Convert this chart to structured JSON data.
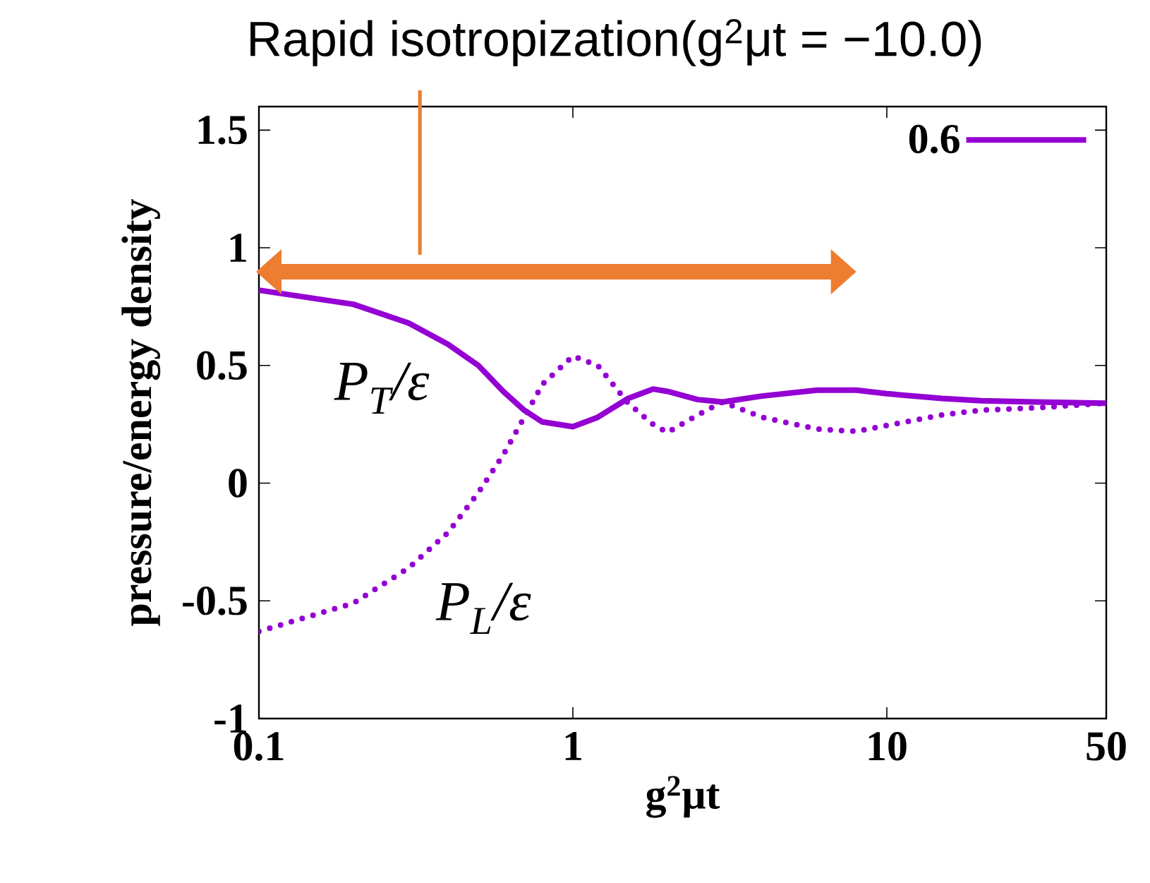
{
  "chart_data": {
    "type": "line",
    "title": "Rapid isotropization(g$^{2}$μt = −10.0)",
    "xlabel": "g$^{2}$μt",
    "ylabel": "pressure/energy density",
    "log": "x",
    "xlim": [
      0.1,
      50
    ],
    "ylim": [
      -1,
      1.6
    ],
    "xticks": [
      0.1,
      1,
      10,
      50
    ],
    "yticks": [
      -1,
      -0.5,
      0,
      0.5,
      1,
      1.5
    ],
    "grid": false,
    "legend": "top right",
    "x": [
      0.1,
      0.2,
      0.3,
      0.4,
      0.5,
      0.6,
      0.7,
      0.8,
      1,
      1.2,
      1.5,
      1.8,
      2,
      2.5,
      3,
      4,
      6,
      8,
      10,
      15,
      20,
      30,
      50
    ],
    "series": [
      {
        "name": "0.6",
        "color": "#9400d3",
        "line_style": "solid",
        "values": [
          0.82,
          0.76,
          0.68,
          0.59,
          0.5,
          0.39,
          0.31,
          0.26,
          0.24,
          0.28,
          0.36,
          0.4,
          0.39,
          0.355,
          0.345,
          0.37,
          0.395,
          0.395,
          0.38,
          0.36,
          0.35,
          0.345,
          0.34
        ]
      },
      {
        "color": "#9400d3",
        "line_style": "dotted",
        "values": [
          -0.63,
          -0.51,
          -0.36,
          -0.21,
          -0.04,
          0.12,
          0.28,
          0.42,
          0.54,
          0.5,
          0.34,
          0.25,
          0.215,
          0.29,
          0.345,
          0.28,
          0.23,
          0.22,
          0.245,
          0.29,
          0.31,
          0.32,
          0.34
        ]
      }
    ],
    "annotations": [
      "P$_{T}$/ε",
      "P$_{L}$/ε"
    ]
  }
}
